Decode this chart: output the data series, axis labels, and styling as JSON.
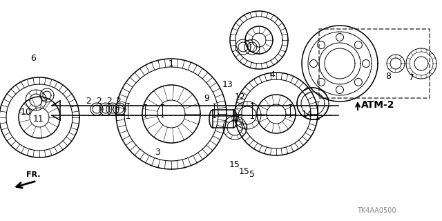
{
  "background_color": "#ffffff",
  "line_color": "#000000",
  "atm2_text": "ATM-2",
  "code_text": "TK4AA0500",
  "label_fontsize": 9,
  "dashed_box_color": "#555555"
}
